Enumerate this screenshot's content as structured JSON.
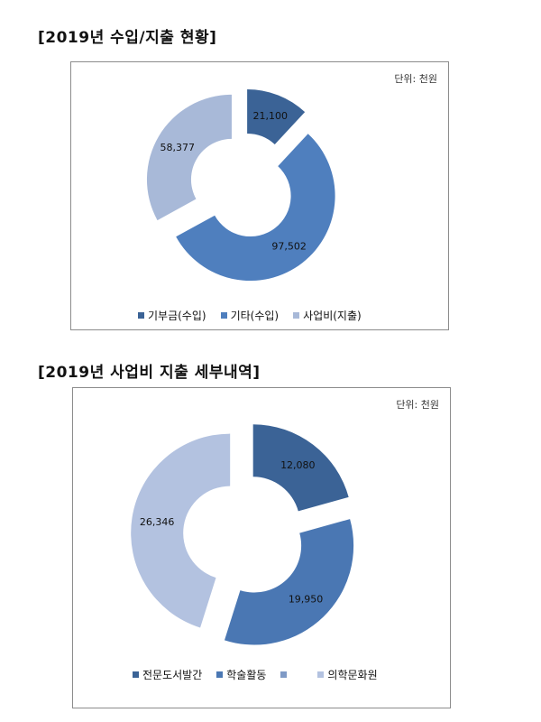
{
  "sections": [
    {
      "title": "[2019년 수입/지출 현황]"
    },
    {
      "title": "[2019년 사업비 지출 세부내역]"
    }
  ],
  "chart_data": [
    {
      "type": "pie",
      "variant": "exploded-donut",
      "unit_label": "단위: 천원",
      "categories": [
        "기부금(수입)",
        "기타(수입)",
        "사업비(지출)"
      ],
      "values": [
        21100,
        97502,
        58377
      ],
      "value_labels": [
        "21,100",
        "97,502",
        "58,377"
      ],
      "colors": [
        "#3b6396",
        "#4f7fbe",
        "#a8b9d8"
      ],
      "legend": "bottom"
    },
    {
      "type": "pie",
      "variant": "exploded-donut",
      "unit_label": "단위: 천원",
      "categories": [
        "전문도서발간",
        "학술활동",
        "",
        "의학문화원"
      ],
      "values": [
        12080,
        19950,
        0,
        26346
      ],
      "value_labels": [
        "12,080",
        "19,950",
        "",
        "26,346"
      ],
      "colors": [
        "#3b6396",
        "#4a77b3",
        "#7f9ac6",
        "#b3c2e0"
      ],
      "legend": "bottom"
    }
  ]
}
